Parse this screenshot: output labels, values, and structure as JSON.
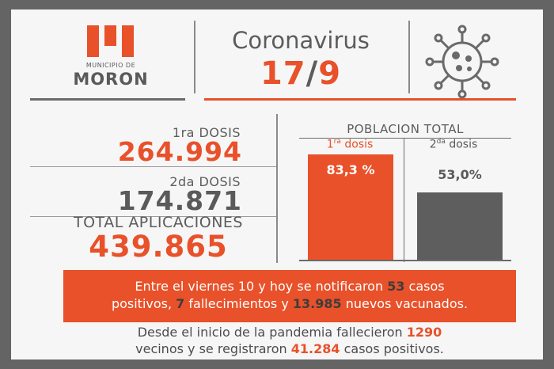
{
  "header": {
    "logo_small": "MUNICIPIO DE",
    "logo_big": "MORON",
    "title": "Coronavirus",
    "date_day": "17",
    "date_slash": "/",
    "date_month": "9"
  },
  "icons": {
    "logo": "municipio-moron-logo",
    "virus": "coronavirus-icon"
  },
  "colors": {
    "accent": "#e8512a",
    "dark_gray": "#5a5a5a",
    "frame": "#646464"
  },
  "doses": {
    "first_label": "1ra DOSIS",
    "first_value": "264.994",
    "second_label": "2da DOSIS",
    "second_value": "174.871",
    "total_label": "TOTAL APLICACIONES",
    "total_value": "439.865"
  },
  "poblacion": {
    "title": "POBLACION TOTAL",
    "first_num": "1",
    "first_sup": "ra",
    "first_word": " dosis",
    "first_pct_label": "83,3 %",
    "first_pct": 83.3,
    "second_num": "2",
    "second_sup": "da",
    "second_word": " dosis",
    "second_pct_label": "53,0%",
    "second_pct": 53.0
  },
  "banner": {
    "p1": "Entre el viernes 10 y hoy se notificaron ",
    "cases": "53",
    "p2": " casos",
    "p3": "positivos, ",
    "deaths": "7",
    "p4": " fallecimientos y ",
    "vaccinated": "13.985",
    "p5": " nuevos vacunados."
  },
  "footer": {
    "p1": "Desde el inicio de la pandemia fallecieron ",
    "deaths": "1290",
    "p2": "vecinos y se registraron ",
    "cases": "41.284",
    "p3": " casos positivos."
  }
}
